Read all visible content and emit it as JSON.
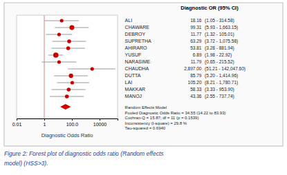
{
  "chart_data": {
    "type": "forest",
    "categories": [
      "ALI",
      "CHAWARE",
      "DEBROY",
      "SUPRETHA",
      "AHIRARO",
      "YUSUF",
      "NARASIME",
      "CHAUDHA",
      "DUTTA",
      "LAI",
      "MAKKAR",
      "MANOJ"
    ],
    "values": [
      18.16,
      99.31,
      11.77,
      63.29,
      53.81,
      6.89,
      11.79,
      2897.0,
      85.79,
      105.2,
      58.33,
      43.36
    ],
    "value_labels": [
      "18.16",
      "99.31",
      "11.77",
      "63.29",
      "53.81",
      "6.89",
      "11.79",
      "2,897.00",
      "85.79",
      "105.20",
      "58.33",
      "43.36"
    ],
    "ci_low": [
      1.05,
      5.93,
      1.32,
      3.72,
      3.28,
      1.98,
      0.65,
      51.21,
      5.2,
      8.21,
      3.33,
      2.55
    ],
    "ci_high": [
      314.58,
      1663.15,
      105.01,
      1075.58,
      881.94,
      22.92,
      215.52,
      142047.6,
      1414.96,
      1780.71,
      953.9,
      737.74
    ],
    "ci_labels": [
      "(1.05 - 314.58)",
      "(5.93 - 1,663.15)",
      "(1.32 - 105.01)",
      "(3.72 - 1,075.58)",
      "(3.28 - 881.94)",
      "(1.98 - 22.92)",
      "(0.65 - 215.52)",
      "(51.21 - 142,047.60)",
      "(5.20 - 1,414.96)",
      "(8.21 - 1,780.71)",
      "(3.33 - 953.90)",
      "(2.55 - 737.74)"
    ],
    "sizes": [
      30,
      55,
      30,
      35,
      35,
      65,
      30,
      30,
      45,
      30,
      35,
      35
    ],
    "pooled": {
      "value": 34.55,
      "ci_low": 14.22,
      "ci_high": 83.93
    },
    "ref_line": 1,
    "color": "#cc0000",
    "xlabel": "Diagnostic Odds Ratio",
    "column_header": "Diagnostic OR (95% CI)",
    "footer": [
      "Random Effects Model",
      "Pooled Diagnostic Odds Ratio = 34.55 (14.22 to 83.93)",
      "Cochran-Q = 15.87; df = 11 (p = 0.1539)",
      "Inconsistency (I-square) = 29.8 %",
      "Tau-squared = 0.6940"
    ],
    "caption": [
      "Figure 2: Forest plot of diagnostic odds ratio (Random effects",
      "model) (HSS>3)."
    ],
    "log": "x",
    "xlim": [
      0.01,
      200000
    ],
    "xticks": [
      0.01,
      1,
      {
        "value": 100,
        "label": "100.0"
      },
      10000
    ],
    "tick_labels": "x",
    "grid": false
  }
}
